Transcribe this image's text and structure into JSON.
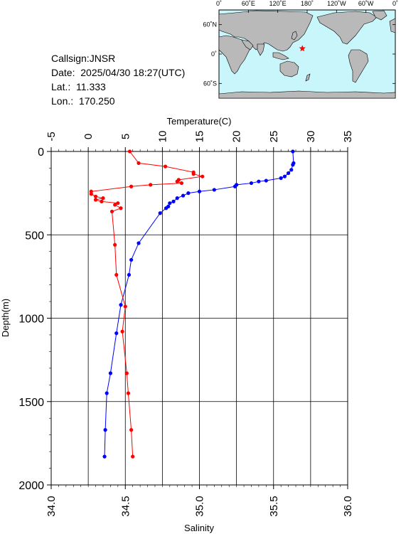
{
  "info": {
    "callsign": "Callsign:JNSR",
    "date": "Date:  2025/04/30 18:27(UTC)",
    "lat": "Lat.:  11.333",
    "lon": "Lon.:  170.250"
  },
  "map": {
    "top_labels": [
      "0˚",
      "60˚E",
      "120˚E",
      "180˚",
      "120˚W",
      "60˚W",
      "0˚"
    ],
    "side_labels": [
      "60˚N",
      "0˚",
      "60˚S"
    ],
    "ocean_color": "#c8f6fb",
    "land_color": "#b9b9b9",
    "marker": {
      "lat": 11.333,
      "lon": 170.25,
      "color": "#ff0000",
      "icon": "star-icon"
    }
  },
  "chart_data": {
    "type": "line",
    "ylabel": "Depth(m)",
    "ylim": [
      2000,
      0
    ],
    "yticks": [
      0,
      500,
      1000,
      1500,
      2000
    ],
    "grid": true,
    "top_axis": {
      "label": "Temperature(C)",
      "range": [
        -5,
        35
      ],
      "ticks": [
        -5,
        0,
        5,
        10,
        15,
        20,
        25,
        30,
        35
      ]
    },
    "bottom_axis": {
      "label": "Salinity",
      "range": [
        34.0,
        36.0
      ],
      "ticks": [
        "34.0",
        "34.5",
        "35.0",
        "35.5",
        "36.0"
      ]
    },
    "series": [
      {
        "color": "#0000ff",
        "axis": "top",
        "points": [
          [
            27.6,
            0
          ],
          [
            27.7,
            70
          ],
          [
            27.6,
            80
          ],
          [
            27.4,
            110
          ],
          [
            27.0,
            130
          ],
          [
            26.5,
            150
          ],
          [
            26.0,
            160
          ],
          [
            24.0,
            175
          ],
          [
            23.0,
            180
          ],
          [
            22.0,
            190
          ],
          [
            20.0,
            200
          ],
          [
            19.8,
            210
          ],
          [
            17.0,
            230
          ],
          [
            15.0,
            240
          ],
          [
            13.5,
            250
          ],
          [
            12.8,
            265
          ],
          [
            12.0,
            280
          ],
          [
            11.5,
            300
          ],
          [
            11.0,
            310
          ],
          [
            10.8,
            330
          ],
          [
            10.5,
            340
          ],
          [
            9.7,
            370
          ],
          [
            6.8,
            550
          ],
          [
            5.8,
            650
          ],
          [
            5.5,
            740
          ],
          [
            4.4,
            920
          ],
          [
            3.8,
            1090
          ],
          [
            3.0,
            1330
          ],
          [
            2.5,
            1450
          ],
          [
            2.3,
            1670
          ],
          [
            2.2,
            1830
          ]
        ]
      },
      {
        "color": "#ff0000",
        "axis": "bottom",
        "points": [
          [
            34.53,
            0
          ],
          [
            34.59,
            70
          ],
          [
            34.77,
            90
          ],
          [
            34.96,
            125
          ],
          [
            34.96,
            135
          ],
          [
            35.02,
            150
          ],
          [
            34.86,
            170
          ],
          [
            34.85,
            180
          ],
          [
            34.88,
            190
          ],
          [
            34.67,
            200
          ],
          [
            34.54,
            210
          ],
          [
            34.27,
            240
          ],
          [
            34.27,
            255
          ],
          [
            34.3,
            270
          ],
          [
            34.35,
            280
          ],
          [
            34.3,
            290
          ],
          [
            34.34,
            300
          ],
          [
            34.45,
            310
          ],
          [
            34.43,
            320
          ],
          [
            34.47,
            340
          ],
          [
            34.41,
            360
          ],
          [
            34.43,
            560
          ],
          [
            34.44,
            740
          ],
          [
            34.5,
            930
          ],
          [
            34.48,
            1080
          ],
          [
            34.51,
            1330
          ],
          [
            34.52,
            1450
          ],
          [
            34.54,
            1670
          ],
          [
            34.55,
            1830
          ]
        ]
      }
    ]
  }
}
